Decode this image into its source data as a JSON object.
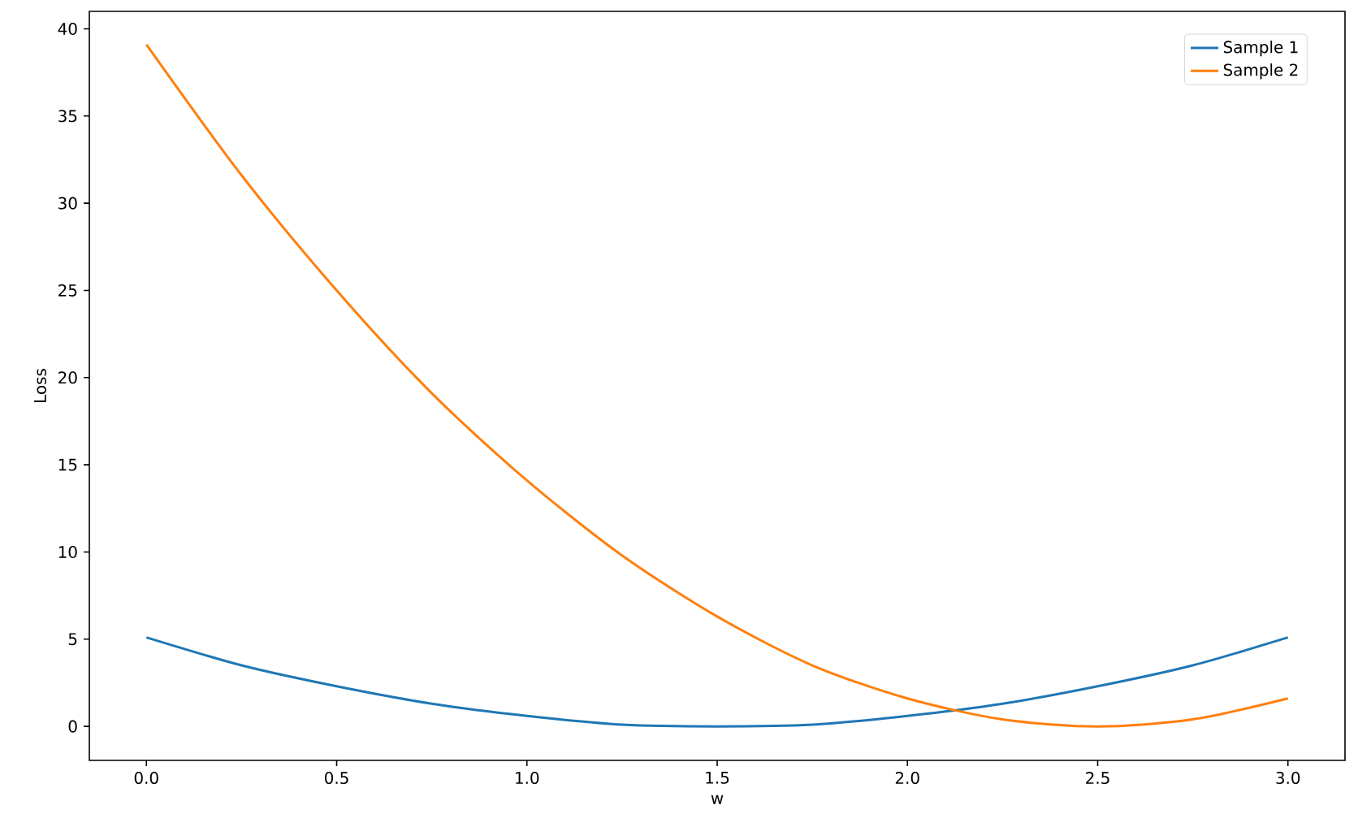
{
  "chart_data": {
    "type": "line",
    "xlabel": "w",
    "ylabel": "Loss",
    "x": [
      0,
      0.25,
      0.5,
      0.75,
      1,
      1.25,
      1.5,
      1.75,
      2,
      2.25,
      2.5,
      2.75,
      3
    ],
    "series": [
      {
        "name": "Sample 1",
        "color": "#1f77b4",
        "values": [
          5.1,
          3.5,
          2.3,
          1.3,
          0.6,
          0.1,
          0,
          0.1,
          0.6,
          1.3,
          2.3,
          3.5,
          5.1
        ]
      },
      {
        "name": "Sample 2",
        "color": "#ff7f0e",
        "values": [
          39.1,
          31.6,
          25,
          19.1,
          14.1,
          9.8,
          6.3,
          3.5,
          1.6,
          0.4,
          0,
          0.4,
          1.6
        ]
      }
    ],
    "xlim": [
      -0.15,
      3.15
    ],
    "ylim": [
      -1.95,
      41
    ],
    "xticks": [
      {
        "value": 0,
        "label": "0.0"
      },
      {
        "value": 0.5,
        "label": "0.5"
      },
      {
        "value": 1,
        "label": "1.0"
      },
      {
        "value": 1.5,
        "label": "1.5"
      },
      {
        "value": 2,
        "label": "2.0"
      },
      {
        "value": 2.5,
        "label": "2.5"
      },
      {
        "value": 3,
        "label": "3.0"
      }
    ],
    "yticks": [
      0,
      5,
      10,
      15,
      20,
      25,
      30,
      35,
      40
    ],
    "legend": "top right",
    "grid": false,
    "marker": "none",
    "line_style": "solid"
  }
}
